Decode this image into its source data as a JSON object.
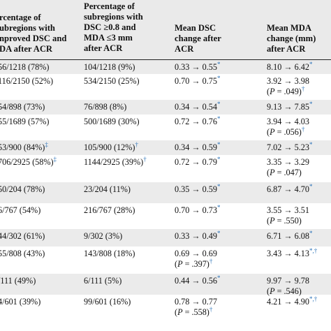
{
  "header": {
    "col1": [
      "rcentage of",
      "ubregions with",
      "nproved DSC and",
      "DA after ACR"
    ],
    "col2": [
      "Percentage of",
      "subregions with",
      "DSC ≥0.8 and",
      "MDA ≤3 mm",
      "after ACR"
    ],
    "col3": [
      "Mean DSC",
      "change after",
      "ACR"
    ],
    "col4": [
      "Mean MDA",
      "change (mm)",
      "after ACR"
    ]
  },
  "rows": [
    {
      "c1": "56/1218 (78%)",
      "c1m": "",
      "c2": "104/1218 (9%)",
      "c2m": "",
      "c3": [
        "0.33 → 0.55"
      ],
      "c3m": "*",
      "c4": [
        "8.10 → 6.42"
      ],
      "c4m": "*"
    },
    {
      "c1": "116/2150 (52%)",
      "c1m": "",
      "c2": "534/2150 (25%)",
      "c2m": "",
      "c3": [
        "0.70 → 0.75"
      ],
      "c3m": "*",
      "c4": [
        "3.92 → 3.98",
        "(P = .049)"
      ],
      "c4m": "†"
    },
    {
      "c1": "54/898 (73%)",
      "c1m": "",
      "c2": "76/898 (8%)",
      "c2m": "",
      "c3": [
        "0.34 → 0.54"
      ],
      "c3m": "*",
      "c4": [
        "9.13 → 7.85"
      ],
      "c4m": "*"
    },
    {
      "c1": "55/1689 (57%)",
      "c1m": "",
      "c2": "500/1689 (30%)",
      "c2m": "",
      "c3": [
        "0.72 → 0.76"
      ],
      "c3m": "*",
      "c4": [
        "3.94 → 4.03",
        "(P = .056)"
      ],
      "c4m": "†"
    },
    {
      "c1": "53/900 (84%)",
      "c1m": "‡",
      "c2": "105/900 (12%)",
      "c2m": "†",
      "c3": [
        "0.34 → 0.59"
      ],
      "c3m": "*",
      "c4": [
        "7.02 → 5.23"
      ],
      "c4m": "*"
    },
    {
      "c1": "706/2925 (58%)",
      "c1m": "‡",
      "c2": "1144/2925 (39%)",
      "c2m": "†",
      "c3": [
        "0.72 → 0.79"
      ],
      "c3m": "*",
      "c4": [
        "3.35 → 3.29",
        "(P = .047)"
      ],
      "c4m": ""
    },
    {
      "c1": "50/204 (78%)",
      "c1m": "",
      "c2": "23/204 (11%)",
      "c2m": "",
      "c3": [
        "0.35 → 0.59"
      ],
      "c3m": "*",
      "c4": [
        "6.87 → 4.70"
      ],
      "c4m": "*"
    },
    {
      "c1": "6/767 (54%)",
      "c1m": "",
      "c2": "216/767 (28%)",
      "c2m": "",
      "c3": [
        "0.70 → 0.73"
      ],
      "c3m": "*",
      "c4": [
        "3.55 → 3.51",
        "(P = .550)"
      ],
      "c4m": ""
    },
    {
      "c1": "44/302 (61%)",
      "c1m": "",
      "c2": "9/302 (3%)",
      "c2m": "",
      "c3": [
        "0.33 → 0.49"
      ],
      "c3m": "*",
      "c4": [
        "6.71 → 6.08"
      ],
      "c4m": "*"
    },
    {
      "c1": "55/808 (43%)",
      "c1m": "",
      "c2": "143/808 (18%)",
      "c2m": "",
      "c3": [
        "0.69 → 0.69",
        "(P = .397)"
      ],
      "c3m": "†",
      "c4": [
        "3.43 → 4.13"
      ],
      "c4m": "*,†"
    },
    {
      "c1": "/111 (49%)",
      "c1m": "",
      "c2": "6/111 (5%)",
      "c2m": "",
      "c3": [
        "0.44 → 0.56"
      ],
      "c3m": "*",
      "c4": [
        "9.97 → 9.78",
        "(P = .546)"
      ],
      "c4m": ""
    },
    {
      "c1": "4/601 (39%)",
      "c1m": "",
      "c2": "99/601 (16%)",
      "c2m": "",
      "c3": [
        "0.78 → 0.77",
        "(P = .558)"
      ],
      "c3m": "†",
      "c4": [
        "4.21 → 4.90"
      ],
      "c4m": "*,†"
    }
  ]
}
